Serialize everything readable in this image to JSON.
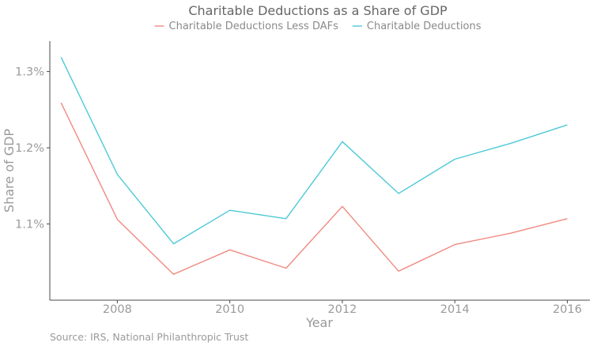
{
  "chart_data": {
    "type": "line",
    "title": "Charitable Deductions as a Share of GDP",
    "xlabel": "Year",
    "ylabel": "Share of GDP",
    "x": [
      2007,
      2008,
      2009,
      2010,
      2011,
      2012,
      2013,
      2014,
      2015,
      2016
    ],
    "series": [
      {
        "name": "Charitable Deductions Less DAFs",
        "color": "#f08a80",
        "values": [
          1.259,
          1.106,
          1.034,
          1.066,
          1.042,
          1.123,
          1.038,
          1.073,
          1.088,
          1.107
        ]
      },
      {
        "name": "Charitable Deductions",
        "color": "#4ec9d8",
        "values": [
          1.319,
          1.165,
          1.074,
          1.118,
          1.107,
          1.208,
          1.14,
          1.185,
          1.206,
          1.23
        ]
      }
    ],
    "xlim": [
      2006.8,
      2016.4
    ],
    "ylim": [
      1.0,
      1.34
    ],
    "x_ticks": [
      2008,
      2010,
      2012,
      2014,
      2016
    ],
    "y_ticks": [
      1.1,
      1.2,
      1.3
    ],
    "y_tick_labels": [
      "1.1%",
      "1.2%",
      "1.3%"
    ],
    "legend_position": "top",
    "grid": false
  },
  "source_note": "Source: IRS, National Philanthropic Trust"
}
